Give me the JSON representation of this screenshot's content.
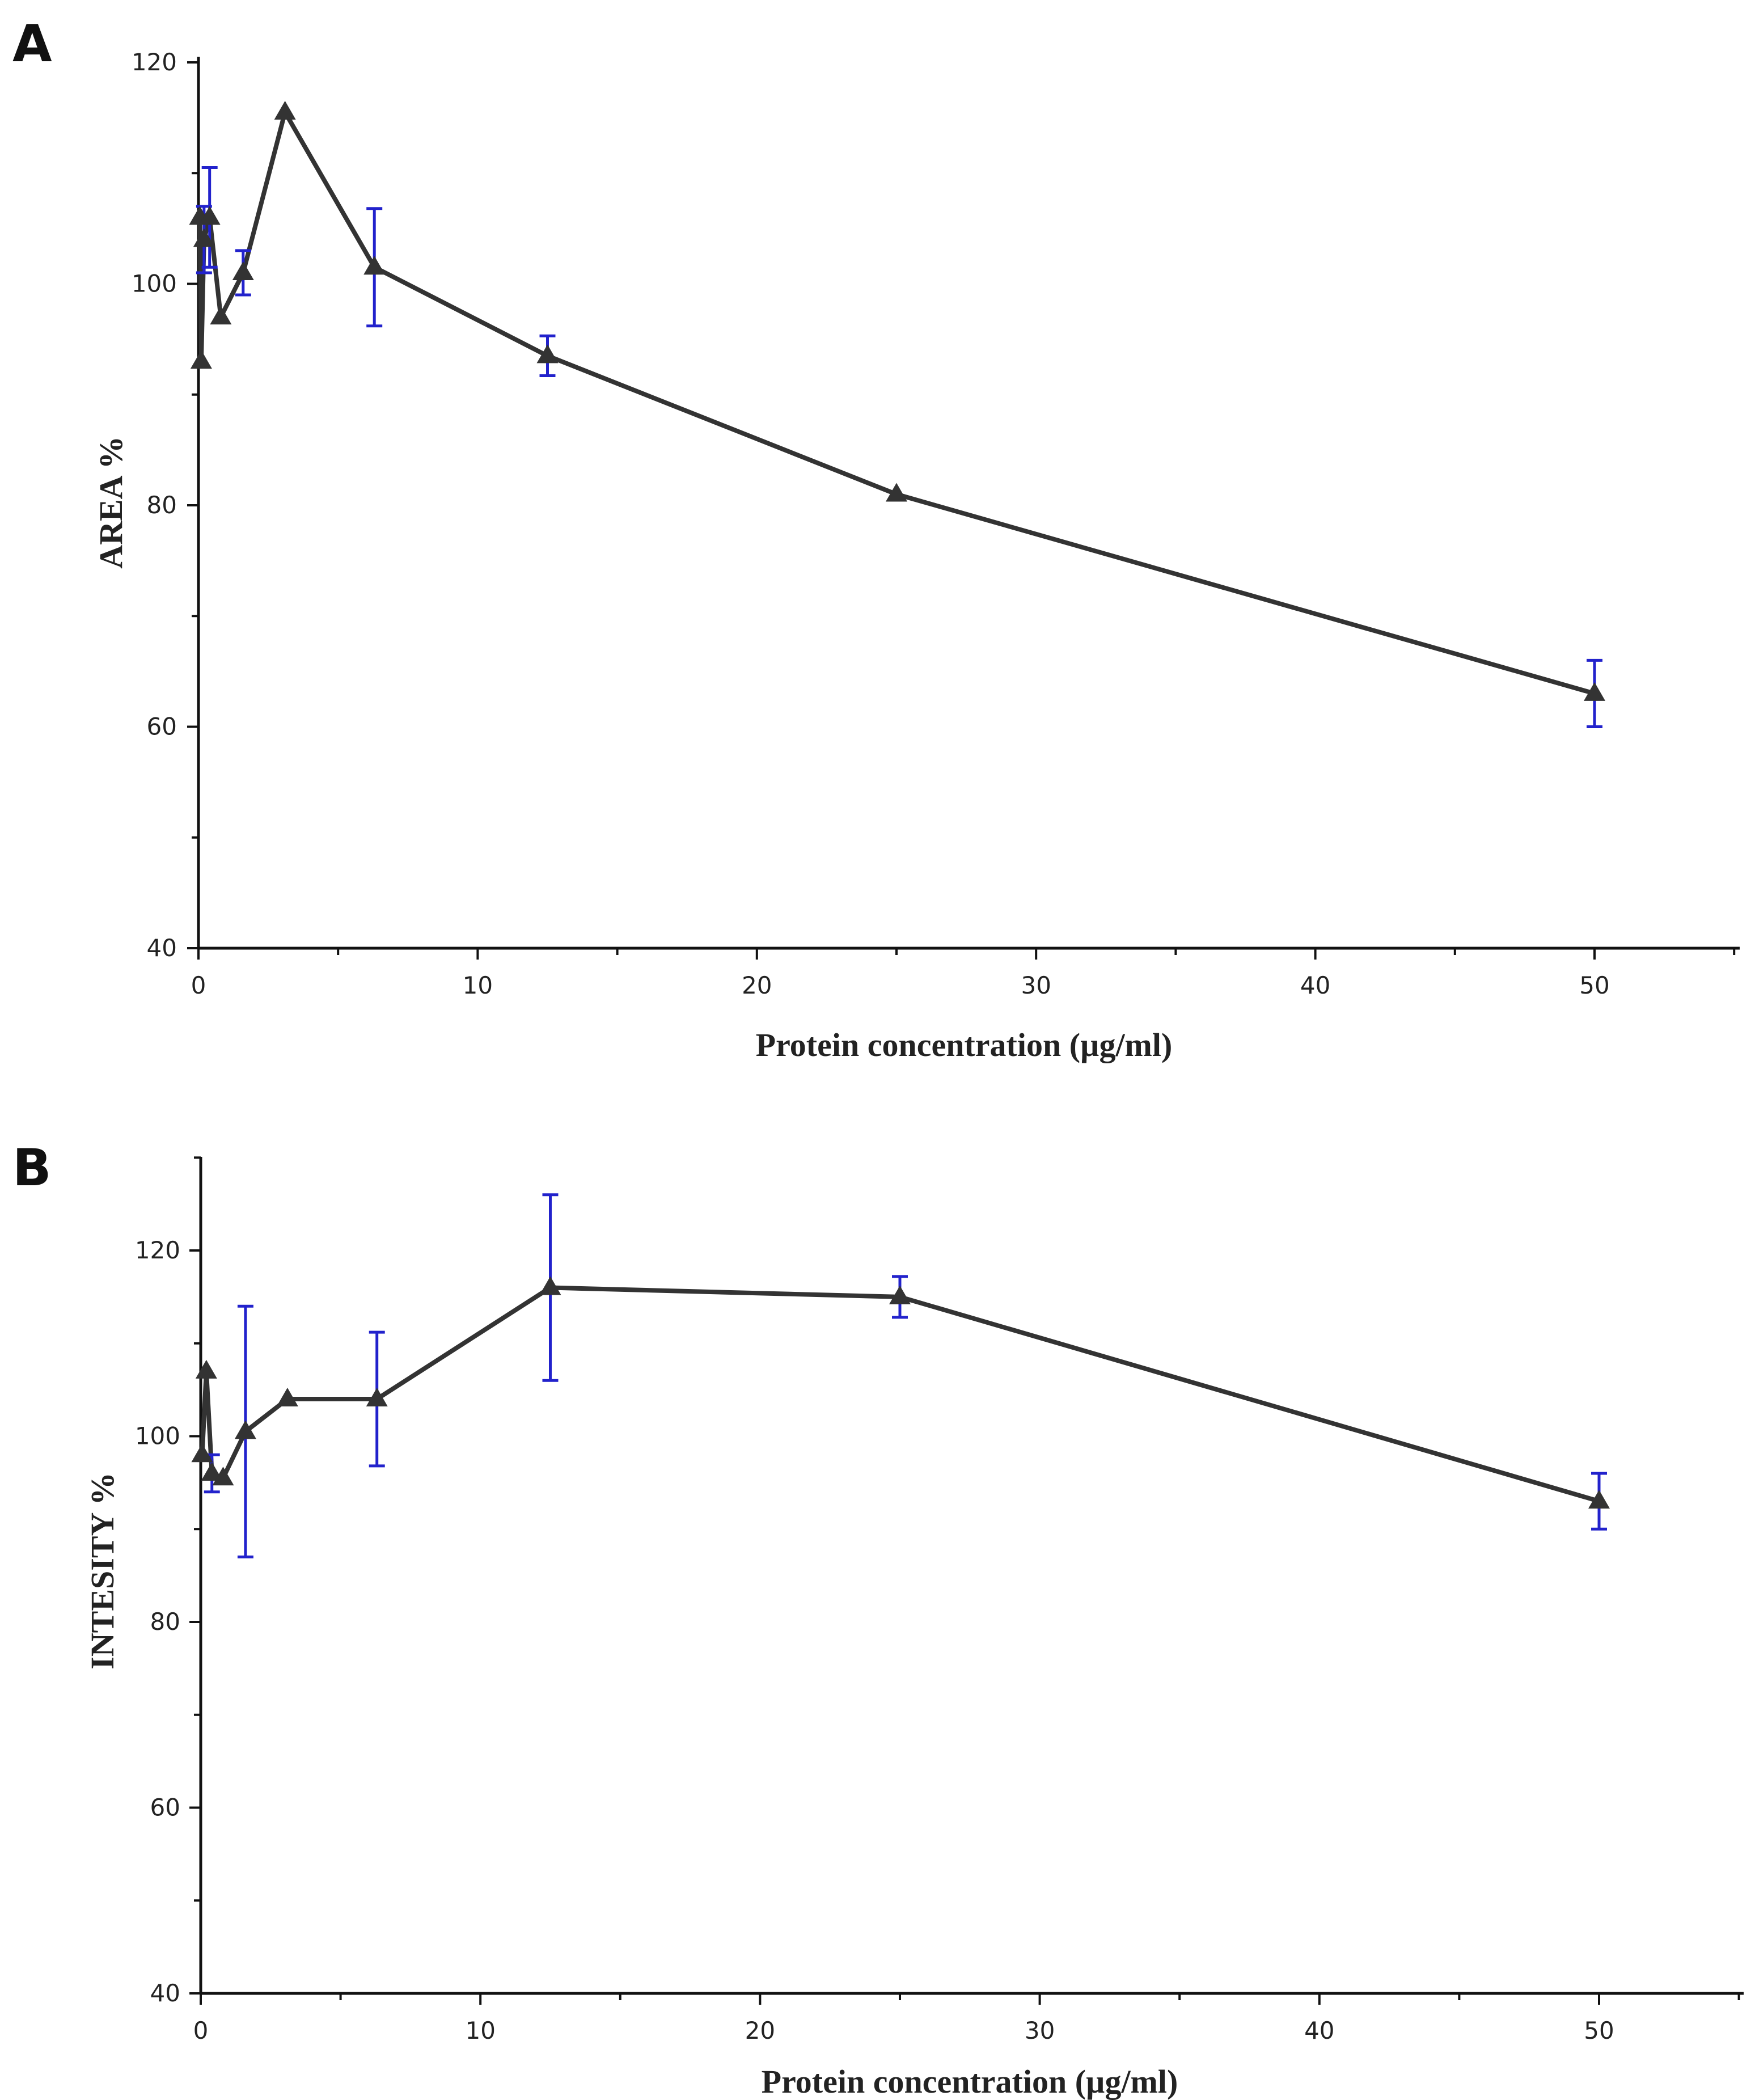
{
  "chart_data": [
    {
      "panel": "A",
      "type": "line",
      "title": "",
      "xlabel": "Protein concentration (µg/ml)",
      "ylabel": "AREA %",
      "xlim": [
        0,
        55
      ],
      "ylim": [
        40,
        120
      ],
      "xticks": [
        0,
        10,
        20,
        30,
        40,
        50
      ],
      "yticks": [
        40,
        60,
        80,
        100,
        120
      ],
      "marker": "triangle",
      "colors": {
        "line": "#333333",
        "errorbar": "#2222cc"
      },
      "series": [
        {
          "name": "AREA %",
          "x": [
            0.05,
            0.1,
            0.2,
            0.4,
            0.8,
            1.6,
            3.1,
            6.3,
            12.5,
            25,
            50
          ],
          "y": [
            106,
            93,
            104,
            106,
            97,
            101,
            115.5,
            101.5,
            93.5,
            81,
            63
          ],
          "err": [
            0,
            0,
            3,
            4.5,
            0,
            2,
            0,
            5.3,
            1.8,
            0,
            3
          ]
        }
      ]
    },
    {
      "panel": "B",
      "type": "line",
      "title": "",
      "xlabel": "Protein concentration (µg/ml)",
      "ylabel": "INTESITY %",
      "xlim": [
        0,
        55
      ],
      "ylim": [
        40,
        130
      ],
      "xticks": [
        0,
        10,
        20,
        30,
        40,
        50
      ],
      "yticks": [
        40,
        60,
        80,
        100,
        120
      ],
      "marker": "triangle",
      "colors": {
        "line": "#333333",
        "errorbar": "#2222cc"
      },
      "series": [
        {
          "name": "INTESITY %",
          "x": [
            0.05,
            0.2,
            0.4,
            0.8,
            1.6,
            3.1,
            6.3,
            12.5,
            25,
            50
          ],
          "y": [
            98,
            107,
            96,
            95.5,
            100.5,
            104,
            104,
            116,
            115,
            93
          ],
          "err": [
            0,
            0,
            2,
            0,
            13.5,
            0,
            7.2,
            10,
            2.2,
            3
          ]
        }
      ]
    }
  ]
}
